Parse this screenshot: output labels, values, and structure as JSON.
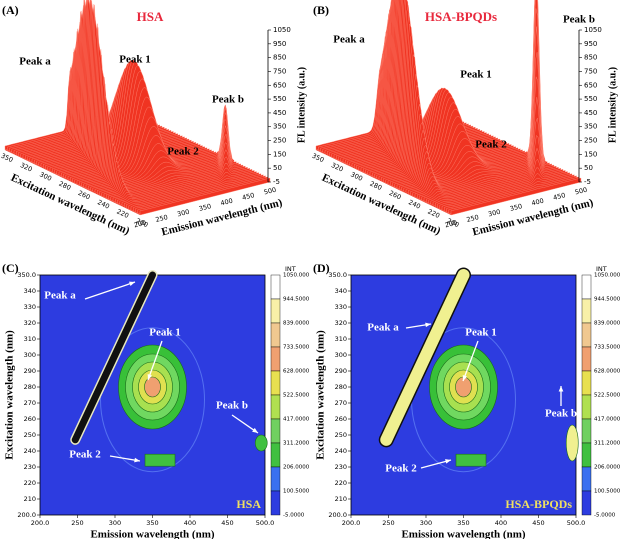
{
  "panels": [
    {
      "kind": "surface",
      "label": "(A)",
      "title": "HSA",
      "peaks": [
        "Peak a",
        "Peak 1",
        "Peak b",
        "Peak 2"
      ],
      "x_axis_label": "Excitation wavelength (nm)",
      "y_axis_label": "Emission wavelength (nm)",
      "z_axis_label": "FL intensity (a.u.)",
      "x_ticks": [
        "350",
        "320",
        "300",
        "280",
        "260",
        "240",
        "220",
        "200"
      ],
      "y_ticks": [
        "200",
        "250",
        "300",
        "350",
        "400",
        "450",
        "500"
      ],
      "z_ticks": [
        "1050",
        "950",
        "850",
        "750",
        "650",
        "550",
        "450",
        "350",
        "250",
        "150",
        "50",
        "-5"
      ]
    },
    {
      "kind": "surface",
      "label": "(B)",
      "title": "HSA-BPQDs",
      "peaks": [
        "Peak a",
        "Peak 1",
        "Peak b",
        "Peak 2"
      ],
      "x_axis_label": "Excitation wavelength (nm)",
      "y_axis_label": "Emission wavelength (nm)",
      "z_axis_label": "FL intensity (a.u.)",
      "x_ticks": [
        "350",
        "320",
        "300",
        "280",
        "260",
        "240",
        "220",
        "200"
      ],
      "y_ticks": [
        "200",
        "250",
        "300",
        "350",
        "400",
        "450",
        "500"
      ],
      "z_ticks": [
        "1050",
        "950",
        "850",
        "750",
        "650",
        "550",
        "450",
        "350",
        "250",
        "150",
        "50",
        "-5"
      ]
    },
    {
      "kind": "contour",
      "label": "(C)",
      "title": "HSA",
      "peaks": [
        "Peak a",
        "Peak 1",
        "Peak b",
        "Peak 2"
      ],
      "x_axis_label": "Emission wavelength (nm)",
      "y_axis_label": "Excitation wavelength (nm)",
      "x_ticks": [
        "200.0",
        "250",
        "300",
        "350",
        "400",
        "450",
        "500.0"
      ],
      "y_ticks": [
        "350.0",
        "340",
        "330",
        "320",
        "310",
        "300",
        "290",
        "280",
        "270",
        "260",
        "250",
        "240",
        "230",
        "220",
        "210",
        "200.0"
      ],
      "colorbar_title": "INT",
      "colorbar_ticks": [
        "1050.000",
        "944.5000",
        "839.0000",
        "733.5000",
        "628.0000",
        "522.5000",
        "417.0000",
        "311.2000",
        "206.0000",
        "100.5000",
        "-5.0000"
      ]
    },
    {
      "kind": "contour",
      "label": "(D)",
      "title": "HSA-BPQDs",
      "peaks": [
        "Peak a",
        "Peak 1",
        "Peak b",
        "Peak 2"
      ],
      "x_axis_label": "Emission wavelength (nm)",
      "y_axis_label": "Excitation wavelength (nm)",
      "x_ticks": [
        "200.0",
        "250",
        "300",
        "350",
        "400",
        "450",
        "500.0"
      ],
      "y_ticks": [
        "350.0",
        "340",
        "330",
        "320",
        "310",
        "300",
        "290",
        "280",
        "270",
        "260",
        "250",
        "240",
        "230",
        "220",
        "210",
        "200.0"
      ],
      "colorbar_title": "INT",
      "colorbar_ticks": [
        "1050.000",
        "944.5000",
        "839.0000",
        "733.5000",
        "628.0000",
        "522.5000",
        "417.0000",
        "311.2000",
        "206.0000",
        "100.5000",
        "-5.0000"
      ]
    }
  ]
}
